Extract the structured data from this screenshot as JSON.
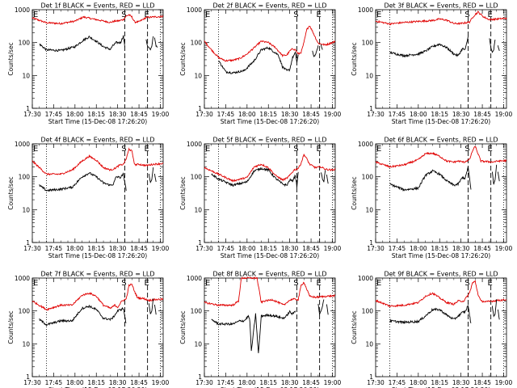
{
  "chart_data": {
    "type": "line",
    "layout": "3x3 grid of panels",
    "shared": {
      "ylabel": "Counts/sec",
      "xlabel": "Start Time (15-Dec-08 17:26:20)",
      "xticks": [
        "17:30",
        "17:45",
        "18:00",
        "18:15",
        "18:30",
        "18:45",
        "19:00"
      ],
      "xlim_minutes_from_1730": [
        0,
        92
      ],
      "yscale": "log",
      "ylim": [
        1,
        1000
      ],
      "yticks": [
        "1",
        "10",
        "100",
        "1000"
      ],
      "markers": [
        {
          "label": "E",
          "time": "17:30"
        },
        {
          "label": "S",
          "time": "18:35"
        },
        {
          "label": "E",
          "time": "18:51"
        }
      ],
      "dotted_lines": [
        "17:40",
        "19:00"
      ],
      "dashed_lines": [
        "18:35",
        "18:51"
      ],
      "series_colors": {
        "events": "#000000",
        "lld": "#e00000"
      }
    },
    "panels": [
      {
        "title": "Det 1f BLACK = Events, RED = LLD",
        "events": {
          "t": [
            5,
            10,
            20,
            30,
            36,
            40,
            45,
            50,
            55,
            56,
            59,
            62,
            63,
            64,
            65
          ],
          "y": [
            90,
            60,
            57,
            75,
            120,
            150,
            110,
            75,
            62,
            75,
            100,
            100,
            125,
            160,
            75
          ]
        },
        "lld": {
          "t": [
            0,
            10,
            20,
            30,
            36,
            45,
            55,
            58,
            61,
            64,
            66,
            68,
            70,
            72,
            75,
            80,
            85,
            90,
            92
          ],
          "y": [
            560,
            400,
            380,
            450,
            600,
            500,
            410,
            450,
            460,
            500,
            640,
            700,
            600,
            420,
            430,
            580,
            600,
            620,
            630
          ]
        },
        "fragments": [
          {
            "t": [
              80,
              81,
              82,
              83,
              84,
              85
            ],
            "y": [
              120,
              80,
              70,
              60,
              75,
              160
            ]
          },
          {
            "t": [
              86,
              87,
              88
            ],
            "y": [
              140,
              80,
              70
            ]
          }
        ]
      },
      {
        "title": "Det 2f BLACK = Events, RED = LLD",
        "events": {
          "t": [
            10,
            15,
            20,
            28,
            35,
            40,
            45,
            52,
            55,
            58,
            60,
            62,
            64,
            65,
            66
          ],
          "y": [
            28,
            13,
            12,
            14,
            28,
            60,
            70,
            42,
            18,
            14,
            15,
            35,
            48,
            25,
            40
          ]
        },
        "lld": {
          "t": [
            0,
            5,
            10,
            15,
            20,
            25,
            30,
            35,
            40,
            45,
            50,
            55,
            58,
            60,
            62,
            64,
            66,
            68,
            70,
            72,
            74,
            76,
            80,
            85,
            90,
            92
          ],
          "y": [
            110,
            60,
            35,
            28,
            29,
            33,
            45,
            70,
            110,
            100,
            70,
            40,
            42,
            55,
            65,
            60,
            45,
            50,
            100,
            250,
            330,
            220,
            95,
            85,
            100,
            110
          ]
        },
        "fragments": [
          {
            "t": [
              76,
              77,
              78,
              79,
              80
            ],
            "y": [
              55,
              38,
              42,
              55,
              80
            ]
          },
          {
            "t": [
              82,
              83
            ],
            "y": [
              85,
              60
            ]
          }
        ]
      },
      {
        "title": "Det 3f BLACK = Events, RED = LLD",
        "events": {
          "t": [
            10,
            20,
            30,
            35,
            40,
            45,
            50,
            55,
            58,
            61,
            63,
            65
          ],
          "y": [
            50,
            40,
            45,
            55,
            75,
            90,
            70,
            45,
            40,
            65,
            60,
            150
          ]
        },
        "lld": {
          "t": [
            0,
            10,
            20,
            30,
            40,
            45,
            50,
            55,
            60,
            63,
            66,
            69,
            72,
            76,
            80,
            85,
            92
          ],
          "y": [
            450,
            370,
            410,
            440,
            470,
            520,
            480,
            380,
            380,
            400,
            420,
            650,
            850,
            600,
            500,
            520,
            550
          ]
        },
        "fragments": [
          {
            "t": [
              80,
              81,
              82,
              83,
              84
            ],
            "y": [
              140,
              70,
              50,
              60,
              120
            ]
          },
          {
            "t": [
              86,
              87
            ],
            "y": [
              80,
              55
            ]
          }
        ]
      },
      {
        "title": "Det 4f BLACK = Events, RED = LLD",
        "events": {
          "t": [
            5,
            10,
            20,
            28,
            35,
            40,
            45,
            50,
            55,
            57,
            59,
            62,
            64,
            66
          ],
          "y": [
            55,
            38,
            42,
            48,
            100,
            130,
            100,
            65,
            55,
            60,
            100,
            95,
            120,
            40
          ]
        },
        "lld": {
          "t": [
            0,
            10,
            20,
            28,
            35,
            40,
            45,
            50,
            55,
            58,
            61,
            64,
            66,
            68,
            70,
            72,
            75,
            80,
            85,
            90,
            92
          ],
          "y": [
            300,
            120,
            120,
            160,
            300,
            420,
            320,
            190,
            160,
            180,
            220,
            240,
            350,
            700,
            600,
            230,
            240,
            220,
            240,
            250,
            250
          ]
        },
        "fragments": [
          {
            "t": [
              82,
              83,
              84,
              85
            ],
            "y": [
              120,
              65,
              80,
              200
            ]
          },
          {
            "t": [
              86,
              87
            ],
            "y": [
              120,
              70
            ]
          }
        ]
      },
      {
        "title": "Det 5f BLACK = Events, RED = LLD",
        "events": {
          "t": [
            5,
            10,
            20,
            30,
            35,
            40,
            45,
            50,
            55,
            58,
            60,
            62,
            64,
            65,
            66
          ],
          "y": [
            120,
            85,
            55,
            70,
            150,
            180,
            160,
            90,
            60,
            55,
            80,
            75,
            110,
            50,
            130
          ]
        },
        "lld": {
          "t": [
            0,
            10,
            20,
            30,
            35,
            40,
            45,
            50,
            55,
            58,
            60,
            63,
            66,
            68,
            70,
            72,
            74,
            78,
            82,
            85,
            90,
            92
          ],
          "y": [
            190,
            120,
            75,
            95,
            200,
            240,
            190,
            110,
            80,
            90,
            110,
            160,
            180,
            260,
            480,
            350,
            240,
            190,
            200,
            170,
            160,
            170
          ]
        },
        "fragments": [
          {
            "t": [
              82,
              83,
              84,
              85
            ],
            "y": [
              140,
              85,
              70,
              160
            ]
          },
          {
            "t": [
              86,
              87
            ],
            "y": [
              120,
              60
            ]
          }
        ]
      },
      {
        "title": "Det 6f BLACK = Events, RED = LLD",
        "events": {
          "t": [
            10,
            20,
            30,
            35,
            40,
            45,
            50,
            55,
            58,
            61,
            63,
            65,
            67
          ],
          "y": [
            60,
            40,
            45,
            110,
            150,
            120,
            75,
            55,
            60,
            95,
            90,
            200,
            40
          ]
        },
        "lld": {
          "t": [
            0,
            10,
            20,
            30,
            35,
            40,
            45,
            50,
            55,
            58,
            62,
            66,
            68,
            70,
            72,
            74,
            78,
            82,
            86,
            92
          ],
          "y": [
            280,
            200,
            230,
            330,
            500,
            520,
            420,
            300,
            280,
            300,
            280,
            330,
            600,
            850,
            500,
            300,
            290,
            280,
            300,
            310
          ]
        },
        "fragments": [
          {
            "t": [
              82,
              83,
              84,
              85
            ],
            "y": [
              140,
              60,
              80,
              230
            ]
          },
          {
            "t": [
              86,
              87
            ],
            "y": [
              140,
              75
            ]
          }
        ]
      },
      {
        "title": "Det 7f BLACK = Events, RED = LLD",
        "events": {
          "t": [
            5,
            10,
            20,
            28,
            35,
            40,
            45,
            50,
            55,
            57,
            60,
            62,
            64,
            66
          ],
          "y": [
            55,
            38,
            50,
            50,
            120,
            140,
            110,
            60,
            55,
            65,
            100,
            110,
            120,
            40
          ]
        },
        "lld": {
          "t": [
            0,
            10,
            20,
            28,
            35,
            40,
            45,
            50,
            55,
            58,
            60,
            63,
            66,
            68,
            70,
            72,
            74,
            78,
            82,
            86,
            92
          ],
          "y": [
            200,
            110,
            150,
            150,
            300,
            350,
            280,
            150,
            120,
            150,
            130,
            200,
            230,
            600,
            650,
            380,
            250,
            240,
            210,
            220,
            230
          ]
        },
        "fragments": [
          {
            "t": [
              82,
              83,
              84,
              85
            ],
            "y": [
              170,
              80,
              100,
              240
            ]
          },
          {
            "t": [
              86,
              87
            ],
            "y": [
              160,
              75
            ]
          }
        ]
      },
      {
        "title": "Det 8f BLACK = Events, RED = LLD",
        "events": {
          "t": [
            5,
            10,
            20,
            25,
            28,
            31,
            32,
            33,
            36,
            38,
            40,
            45,
            50,
            55,
            57,
            60,
            62,
            64
          ],
          "y": [
            55,
            40,
            40,
            50,
            50,
            70,
            50,
            6,
            80,
            5,
            70,
            75,
            70,
            60,
            65,
            95,
            80,
            100
          ]
        },
        "lld": {
          "t": [
            0,
            10,
            20,
            24,
            26,
            28,
            33,
            35,
            37,
            40,
            42,
            48,
            52,
            56,
            59,
            62,
            66,
            68,
            70,
            72,
            74,
            78,
            82,
            86,
            92
          ],
          "y": [
            180,
            150,
            150,
            200,
            1000,
            1000,
            1000,
            1000,
            1000,
            180,
            200,
            220,
            180,
            150,
            200,
            230,
            220,
            600,
            750,
            460,
            280,
            260,
            270,
            280,
            290
          ]
        },
        "fragments": [
          {
            "t": [
              80,
              81,
              82,
              83,
              84
            ],
            "y": [
              170,
              80,
              100,
              140,
              220
            ]
          },
          {
            "t": [
              86,
              87
            ],
            "y": [
              160,
              75
            ]
          }
        ]
      },
      {
        "title": "Det 9f BLACK = Events, RED = LLD",
        "events": {
          "t": [
            10,
            20,
            30,
            35,
            40,
            45,
            50,
            55,
            58,
            61,
            63,
            65,
            67
          ],
          "y": [
            50,
            45,
            48,
            70,
            110,
            110,
            75,
            55,
            70,
            90,
            95,
            150,
            40
          ]
        },
        "lld": {
          "t": [
            0,
            10,
            20,
            30,
            35,
            40,
            45,
            50,
            55,
            58,
            62,
            66,
            68,
            70,
            72,
            74,
            78,
            82,
            86,
            92
          ],
          "y": [
            210,
            140,
            150,
            180,
            280,
            350,
            250,
            180,
            160,
            200,
            200,
            350,
            700,
            800,
            320,
            200,
            190,
            200,
            210,
            220
          ]
        },
        "fragments": [
          {
            "t": [
              82,
              83,
              84,
              85
            ],
            "y": [
              140,
              70,
              80,
              220
            ]
          },
          {
            "t": [
              86,
              87
            ],
            "y": [
              110,
              55
            ]
          }
        ]
      }
    ]
  }
}
